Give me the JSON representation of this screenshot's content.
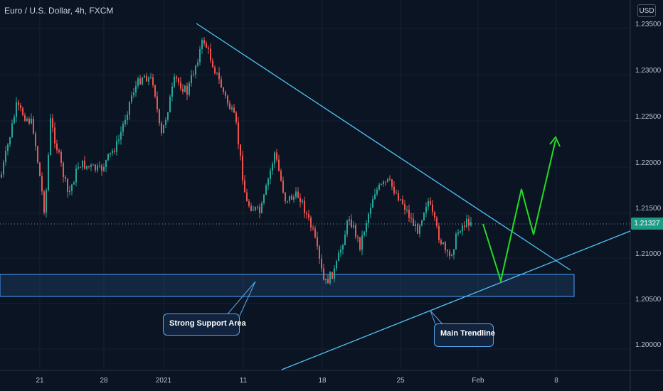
{
  "symbol": "Euro / U.S. Dollar, 4h, FXCM",
  "currency": "USD",
  "current_price": "1.21327",
  "price_axis": [
    "1.23500",
    "1.23000",
    "1.22500",
    "1.22000",
    "1.21500",
    "1.21000",
    "1.20500",
    "1.20000"
  ],
  "time_axis": [
    "21",
    "28",
    "2021",
    "11",
    "18",
    "25",
    "Feb",
    "8"
  ],
  "annotations": {
    "support_label": "Strong Support Area",
    "trendline_label": "Main Trendline"
  },
  "colors": {
    "background": "#0b1422",
    "bull_candle": "#26a69a",
    "bear_candle": "#ef5350",
    "trendline": "#4fc3f7",
    "projection": "#22dd22",
    "support_zone": "#4a9eff"
  }
}
